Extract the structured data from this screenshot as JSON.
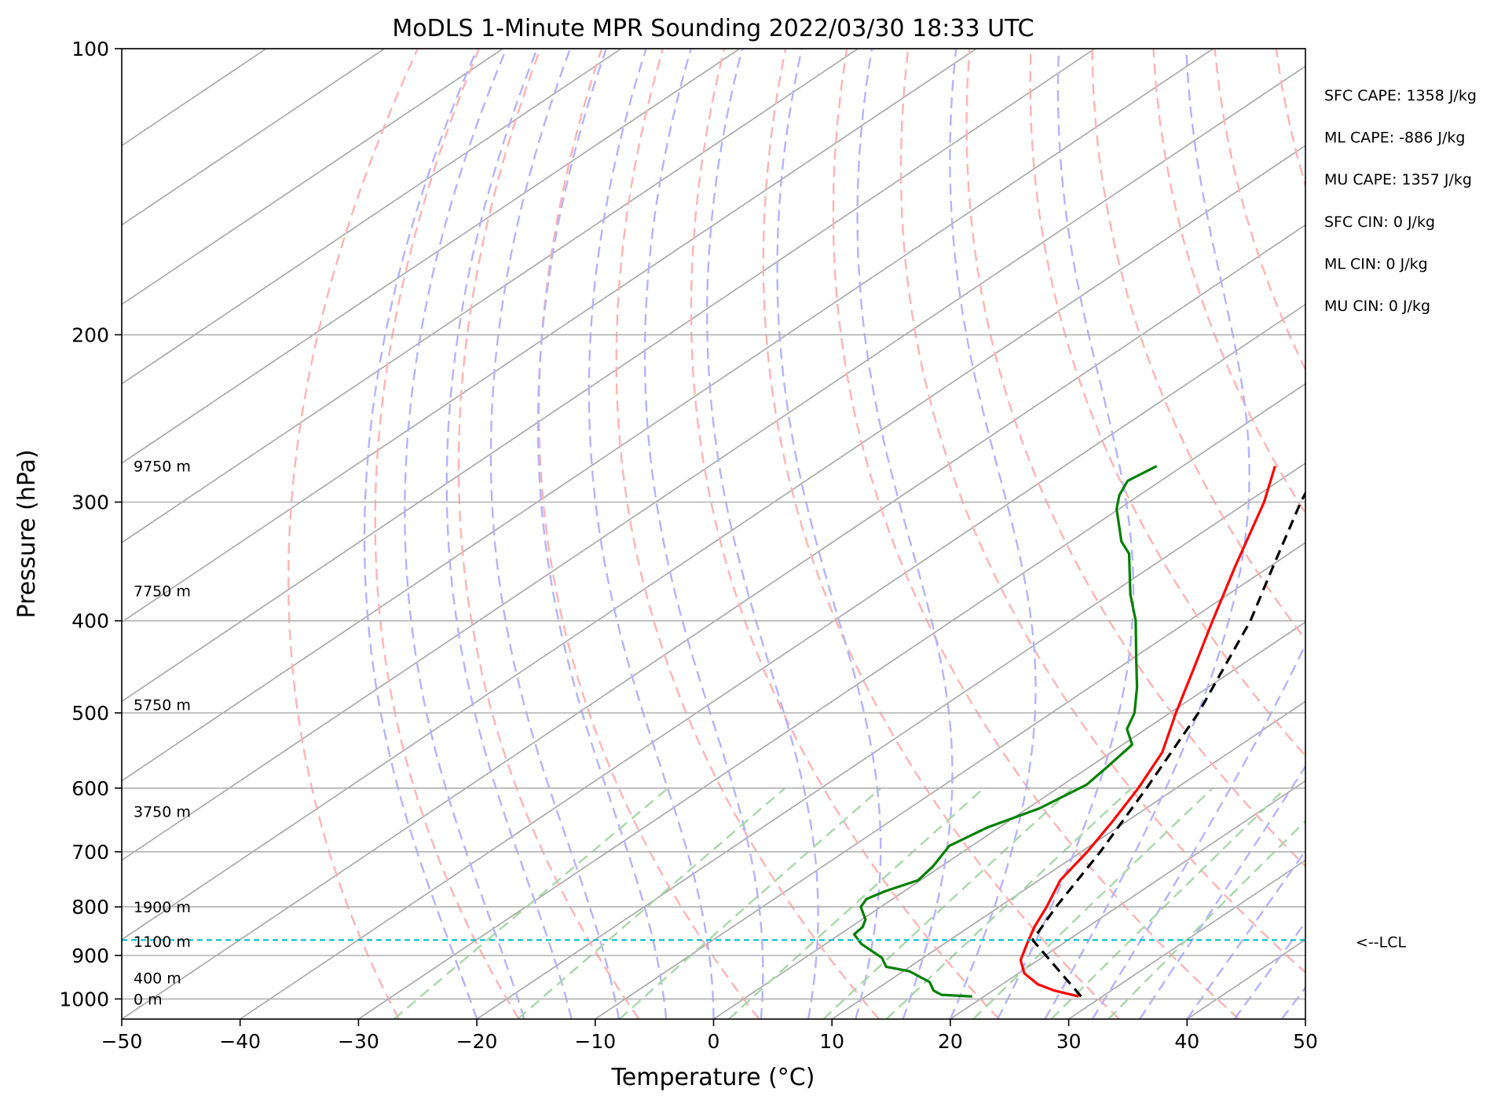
{
  "chart_data": {
    "type": "line",
    "subtype": "skew-t log-p",
    "title": "MoDLS 1-Minute MPR Sounding 2022/03/30 18:33 UTC",
    "xlabel": "Temperature (°C)",
    "ylabel": "Pressure (hPa)",
    "xlim": [
      -50,
      50
    ],
    "ylim": [
      1050,
      100
    ],
    "y_scale": "log",
    "grid": true,
    "x_ticks": [
      "−50",
      "−40",
      "−30",
      "−20",
      "−10",
      "0",
      "10",
      "20",
      "30",
      "40",
      "50"
    ],
    "x_tick_values": [
      -50,
      -40,
      -30,
      -20,
      -10,
      0,
      10,
      20,
      30,
      40,
      50
    ],
    "y_ticks": [
      "100",
      "200",
      "300",
      "400",
      "500",
      "600",
      "700",
      "800",
      "900",
      "1000"
    ],
    "y_tick_values": [
      100,
      200,
      300,
      400,
      500,
      600,
      700,
      800,
      900,
      1000
    ],
    "series": [
      {
        "key": "temperature",
        "color": "#ff0000",
        "style": "solid",
        "points": [
          {
            "p": 994,
            "t": 28.0
          },
          {
            "p": 980,
            "t": 25.2
          },
          {
            "p": 965,
            "t": 23.0
          },
          {
            "p": 940,
            "t": 20.5
          },
          {
            "p": 910,
            "t": 18.5
          },
          {
            "p": 875,
            "t": 17.0
          },
          {
            "p": 840,
            "t": 15.5
          },
          {
            "p": 800,
            "t": 14.0
          },
          {
            "p": 750,
            "t": 11.8
          },
          {
            "p": 700,
            "t": 10.5
          },
          {
            "p": 650,
            "t": 8.8
          },
          {
            "p": 600,
            "t": 6.8
          },
          {
            "p": 550,
            "t": 4.3
          },
          {
            "p": 500,
            "t": 0.5
          },
          {
            "p": 450,
            "t": -3.5
          },
          {
            "p": 400,
            "t": -8.0
          },
          {
            "p": 350,
            "t": -13.0
          },
          {
            "p": 300,
            "t": -18.6
          },
          {
            "p": 275,
            "t": -22.2
          }
        ]
      },
      {
        "key": "dewpoint",
        "color": "#008000",
        "style": "solid",
        "points": [
          {
            "p": 994,
            "t": 19.0
          },
          {
            "p": 990,
            "t": 16.2
          },
          {
            "p": 980,
            "t": 15.0
          },
          {
            "p": 960,
            "t": 13.6
          },
          {
            "p": 935,
            "t": 10.5
          },
          {
            "p": 925,
            "t": 8.0
          },
          {
            "p": 905,
            "t": 6.5
          },
          {
            "p": 875,
            "t": 3.0
          },
          {
            "p": 855,
            "t": 1.2
          },
          {
            "p": 840,
            "t": 1.0
          },
          {
            "p": 825,
            "t": 0.3
          },
          {
            "p": 800,
            "t": -1.7
          },
          {
            "p": 785,
            "t": -2.2
          },
          {
            "p": 770,
            "t": -1.6
          },
          {
            "p": 750,
            "t": -0.2
          },
          {
            "p": 725,
            "t": -0.7
          },
          {
            "p": 690,
            "t": -1.9
          },
          {
            "p": 660,
            "t": -1.0
          },
          {
            "p": 630,
            "t": 1.0
          },
          {
            "p": 595,
            "t": 2.0
          },
          {
            "p": 570,
            "t": 1.5
          },
          {
            "p": 540,
            "t": 0.8
          },
          {
            "p": 520,
            "t": -1.6
          },
          {
            "p": 500,
            "t": -3.0
          },
          {
            "p": 470,
            "t": -6.0
          },
          {
            "p": 440,
            "t": -9.5
          },
          {
            "p": 400,
            "t": -14.5
          },
          {
            "p": 375,
            "t": -18.3
          },
          {
            "p": 340,
            "t": -23.5
          },
          {
            "p": 330,
            "t": -25.7
          },
          {
            "p": 305,
            "t": -30.2
          },
          {
            "p": 295,
            "t": -31.7
          },
          {
            "p": 285,
            "t": -32.8
          },
          {
            "p": 275,
            "t": -32.2
          }
        ]
      },
      {
        "key": "parcel",
        "color": "#000000",
        "style": "dashed",
        "points": [
          {
            "p": 994,
            "t": 28.2
          },
          {
            "p": 867,
            "t": 17.0
          },
          {
            "p": 800,
            "t": 14.8
          },
          {
            "p": 700,
            "t": 11.6
          },
          {
            "p": 600,
            "t": 7.5
          },
          {
            "p": 500,
            "t": 2.4
          },
          {
            "p": 400,
            "t": -4.8
          },
          {
            "p": 350,
            "t": -9.8
          },
          {
            "p": 300,
            "t": -15.5
          },
          {
            "p": 275,
            "t": -18.4
          }
        ]
      }
    ],
    "lcl": {
      "p": 867,
      "label": "<--LCL",
      "color": "#00bfc8"
    },
    "height_labels": [
      {
        "p": 275,
        "text": "9750 m"
      },
      {
        "p": 372,
        "text": "7750 m"
      },
      {
        "p": 490,
        "text": "5750 m"
      },
      {
        "p": 635,
        "text": "3750 m"
      },
      {
        "p": 800,
        "text": "1900 m"
      },
      {
        "p": 870,
        "text": "1100 m"
      },
      {
        "p": 950,
        "text": "400 m"
      },
      {
        "p": 1000,
        "text": "0 m"
      }
    ],
    "indices": [
      "SFC CAPE: 1358 J/kg",
      "ML CAPE: -886 J/kg",
      "MU CAPE: 1357 J/kg",
      "SFC CIN: 0 J/kg",
      "ML CIN: 0 J/kg",
      "MU CIN: 0 J/kg"
    ],
    "background_lines": {
      "isotherms_color": "#a6a6a6",
      "dry_adiabats_color": "#ffb3b3",
      "moist_adiabats_color": "#b3b3ff",
      "mixing_ratio_color": "#a8d8a8"
    }
  }
}
